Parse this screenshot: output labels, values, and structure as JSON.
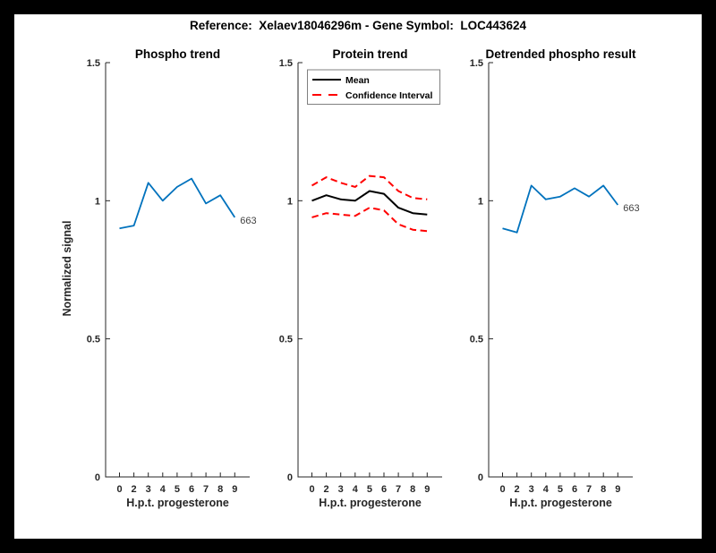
{
  "figure": {
    "title": "Reference:  Xelaev18046296m - Gene Symbol:  LOC443624"
  },
  "palette": {
    "background": "#000000",
    "paper": "#ffffff",
    "blue": "#0072bd",
    "red": "#ff0000",
    "black": "#000000",
    "axis": "#262626",
    "end_label_text": "#404040",
    "legend_border": "#808080"
  },
  "axes_common": {
    "ylabel": "Normalized signal",
    "xlabel": "H.p.t. progesterone",
    "ylim": [
      0,
      1.5
    ],
    "ytick_values": [
      0,
      0.5,
      1,
      1.5
    ],
    "ytick_labels": [
      "0",
      "0.5",
      "1",
      "1.5"
    ],
    "xtick_labels": [
      "0",
      "2",
      "3",
      "4",
      "5",
      "6",
      "7",
      "8",
      "9"
    ],
    "grid": false,
    "legend_position": "top-left"
  },
  "chart_data": [
    {
      "type": "line",
      "title": "Phospho trend",
      "xlabel": "H.p.t. progesterone",
      "ylabel": "Normalized signal",
      "x": [
        0,
        2,
        3,
        4,
        5,
        6,
        7,
        8,
        9
      ],
      "ylim": [
        0,
        1.5
      ],
      "series": [
        {
          "name": "phospho",
          "color": "#0072bd",
          "dash": false,
          "width": 1.8,
          "end_label": "663",
          "values": [
            0.9,
            0.91,
            1.065,
            1.0,
            1.05,
            1.08,
            0.99,
            1.02,
            0.94
          ]
        }
      ]
    },
    {
      "type": "line",
      "title": "Protein trend",
      "xlabel": "H.p.t. progesterone",
      "x": [
        0,
        2,
        3,
        4,
        5,
        6,
        7,
        8,
        9
      ],
      "ylim": [
        0,
        1.5
      ],
      "legend": {
        "position": "top-left",
        "items": [
          {
            "label": "Mean",
            "color": "#000000",
            "dash": false
          },
          {
            "label": "Confidence Interval",
            "color": "#ff0000",
            "dash": true
          }
        ]
      },
      "series": [
        {
          "name": "mean",
          "color": "#000000",
          "dash": false,
          "width": 2,
          "values": [
            1.0,
            1.02,
            1.005,
            1.0,
            1.035,
            1.025,
            0.975,
            0.955,
            0.95
          ]
        },
        {
          "name": "ci-upper",
          "color": "#ff0000",
          "dash": true,
          "width": 2,
          "values": [
            1.055,
            1.085,
            1.065,
            1.05,
            1.09,
            1.085,
            1.035,
            1.01,
            1.005
          ]
        },
        {
          "name": "ci-lower",
          "color": "#ff0000",
          "dash": true,
          "width": 2,
          "values": [
            0.94,
            0.955,
            0.95,
            0.945,
            0.975,
            0.965,
            0.915,
            0.895,
            0.89
          ]
        }
      ]
    },
    {
      "type": "line",
      "title": "Detrended phospho result",
      "xlabel": "H.p.t. progesterone",
      "x": [
        0,
        2,
        3,
        4,
        5,
        6,
        7,
        8,
        9
      ],
      "ylim": [
        0,
        1.5
      ],
      "series": [
        {
          "name": "detrended",
          "color": "#0072bd",
          "dash": false,
          "width": 1.8,
          "end_label": "663",
          "values": [
            0.9,
            0.885,
            1.055,
            1.005,
            1.015,
            1.045,
            1.015,
            1.055,
            0.985
          ]
        }
      ]
    }
  ]
}
